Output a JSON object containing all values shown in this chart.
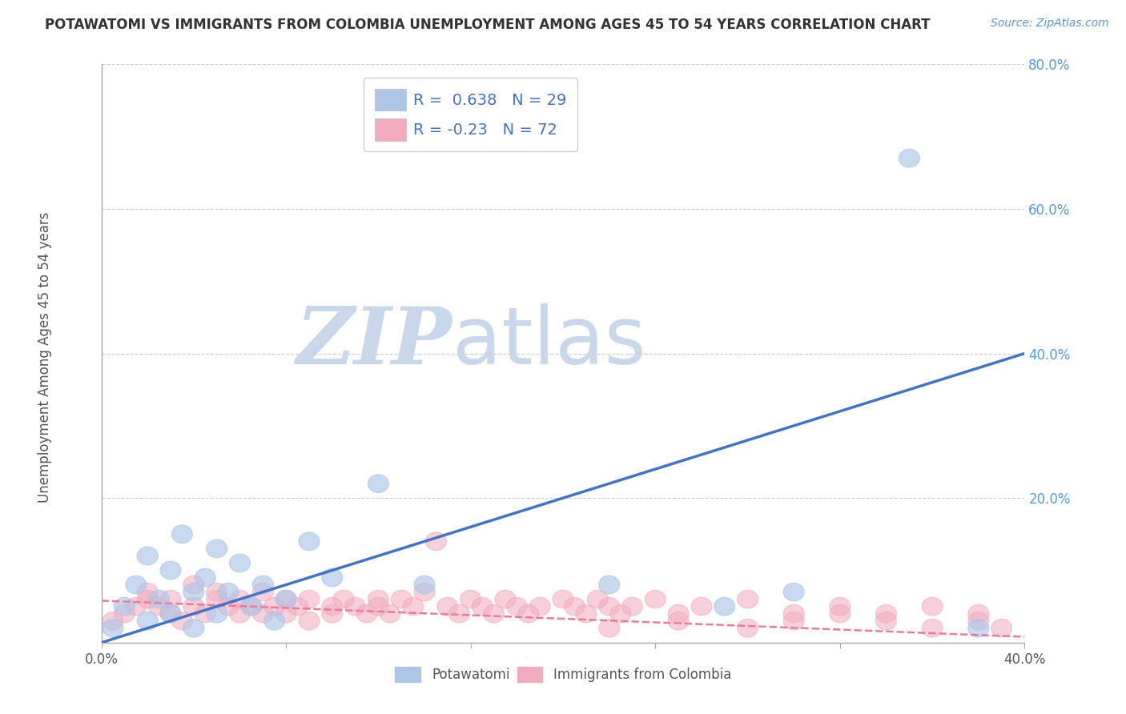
{
  "title": "POTAWATOMI VS IMMIGRANTS FROM COLOMBIA UNEMPLOYMENT AMONG AGES 45 TO 54 YEARS CORRELATION CHART",
  "source": "Source: ZipAtlas.com",
  "ylabel": "Unemployment Among Ages 45 to 54 years",
  "xlim": [
    0.0,
    0.4
  ],
  "ylim": [
    0.0,
    0.8
  ],
  "xticks": [
    0.0,
    0.08,
    0.16,
    0.24,
    0.32,
    0.4
  ],
  "yticks": [
    0.0,
    0.2,
    0.4,
    0.6,
    0.8
  ],
  "ytick_labels_right": [
    "",
    "20.0%",
    "40.0%",
    "60.0%",
    "80.0%"
  ],
  "xtick_labels": [
    "0.0%",
    "",
    "",
    "",
    "",
    "40.0%"
  ],
  "blue_R": 0.638,
  "blue_N": 29,
  "pink_R": -0.23,
  "pink_N": 72,
  "blue_color": "#adc6e8",
  "pink_color": "#f2abbe",
  "blue_line_color": "#4472c4",
  "pink_line_color": "#e87a9a",
  "background_color": "#ffffff",
  "grid_color": "#cccccc",
  "watermark_zip": "ZIP",
  "watermark_atlas": "atlas",
  "watermark_color": "#c8d8ea",
  "blue_line_x0": 0.0,
  "blue_line_y0": 0.0,
  "blue_line_x1": 0.4,
  "blue_line_y1": 0.4,
  "pink_line_x0": 0.0,
  "pink_line_y0": 0.058,
  "pink_line_x1": 0.4,
  "pink_line_y1": 0.008,
  "blue_scatter_x": [
    0.005,
    0.01,
    0.015,
    0.02,
    0.02,
    0.025,
    0.03,
    0.03,
    0.035,
    0.04,
    0.04,
    0.045,
    0.05,
    0.05,
    0.055,
    0.06,
    0.065,
    0.07,
    0.075,
    0.08,
    0.09,
    0.1,
    0.12,
    0.14,
    0.22,
    0.27,
    0.3,
    0.35,
    0.38
  ],
  "blue_scatter_y": [
    0.02,
    0.05,
    0.08,
    0.03,
    0.12,
    0.06,
    0.1,
    0.04,
    0.15,
    0.07,
    0.02,
    0.09,
    0.13,
    0.04,
    0.07,
    0.11,
    0.05,
    0.08,
    0.03,
    0.06,
    0.14,
    0.09,
    0.22,
    0.08,
    0.08,
    0.05,
    0.07,
    0.67,
    0.02
  ],
  "pink_scatter_x": [
    0.005,
    0.01,
    0.015,
    0.02,
    0.02,
    0.025,
    0.03,
    0.03,
    0.035,
    0.04,
    0.04,
    0.045,
    0.05,
    0.05,
    0.055,
    0.06,
    0.06,
    0.065,
    0.07,
    0.07,
    0.075,
    0.08,
    0.08,
    0.085,
    0.09,
    0.09,
    0.1,
    0.1,
    0.105,
    0.11,
    0.115,
    0.12,
    0.12,
    0.125,
    0.13,
    0.135,
    0.14,
    0.145,
    0.15,
    0.155,
    0.16,
    0.165,
    0.17,
    0.175,
    0.18,
    0.185,
    0.19,
    0.2,
    0.205,
    0.21,
    0.215,
    0.22,
    0.225,
    0.23,
    0.24,
    0.25,
    0.26,
    0.28,
    0.3,
    0.32,
    0.34,
    0.36,
    0.22,
    0.25,
    0.28,
    0.3,
    0.32,
    0.34,
    0.36,
    0.38,
    0.38,
    0.39
  ],
  "pink_scatter_y": [
    0.03,
    0.04,
    0.05,
    0.06,
    0.07,
    0.05,
    0.04,
    0.06,
    0.03,
    0.05,
    0.08,
    0.04,
    0.06,
    0.07,
    0.05,
    0.04,
    0.06,
    0.05,
    0.04,
    0.07,
    0.05,
    0.06,
    0.04,
    0.05,
    0.03,
    0.06,
    0.05,
    0.04,
    0.06,
    0.05,
    0.04,
    0.06,
    0.05,
    0.04,
    0.06,
    0.05,
    0.07,
    0.14,
    0.05,
    0.04,
    0.06,
    0.05,
    0.04,
    0.06,
    0.05,
    0.04,
    0.05,
    0.06,
    0.05,
    0.04,
    0.06,
    0.05,
    0.04,
    0.05,
    0.06,
    0.04,
    0.05,
    0.06,
    0.04,
    0.05,
    0.04,
    0.05,
    0.02,
    0.03,
    0.02,
    0.03,
    0.04,
    0.03,
    0.02,
    0.03,
    0.04,
    0.02
  ]
}
